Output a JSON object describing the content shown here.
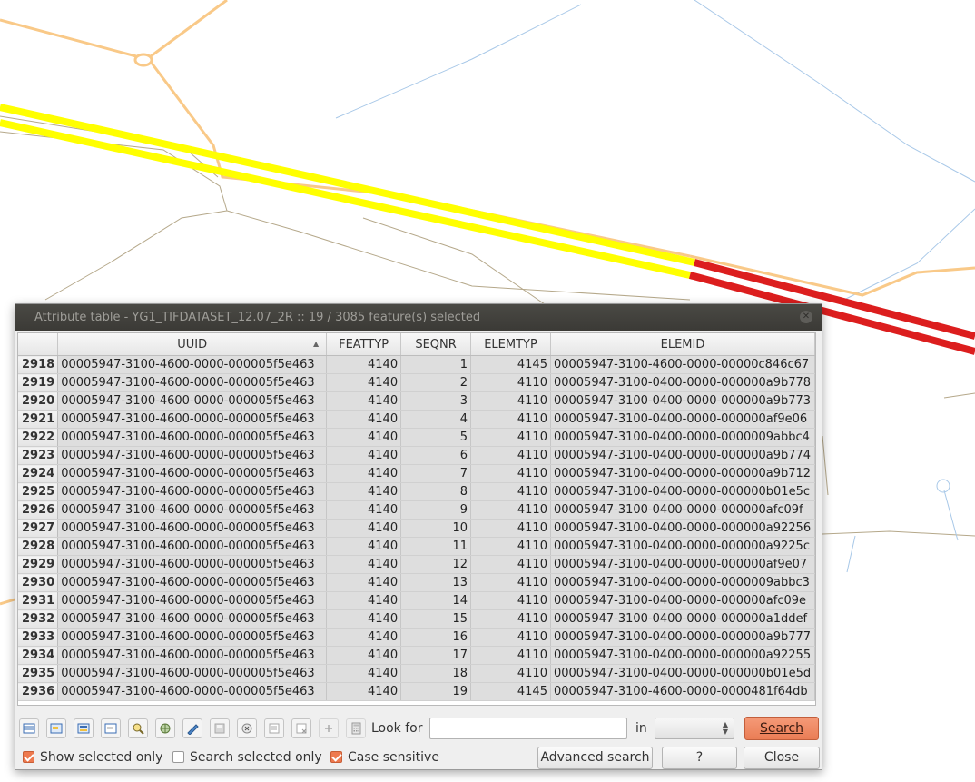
{
  "window": {
    "title": "Attribute table - YG1_TIFDATASET_12.07_2R :: 19 / 3085 feature(s) selected"
  },
  "table": {
    "columns": [
      "UUID",
      "FEATTYP",
      "SEQNR",
      "ELEMTYP",
      "ELEMID"
    ],
    "sorted_column": "UUID",
    "rows": [
      {
        "id": "2918",
        "uuid": "00005947-3100-4600-0000-000005f5e463",
        "feattyp": "4140",
        "seqnr": "1",
        "elemtyp": "4145",
        "elemid": "00005947-3100-4600-0000-00000c846c67"
      },
      {
        "id": "2919",
        "uuid": "00005947-3100-4600-0000-000005f5e463",
        "feattyp": "4140",
        "seqnr": "2",
        "elemtyp": "4110",
        "elemid": "00005947-3100-0400-0000-000000a9b778"
      },
      {
        "id": "2920",
        "uuid": "00005947-3100-4600-0000-000005f5e463",
        "feattyp": "4140",
        "seqnr": "3",
        "elemtyp": "4110",
        "elemid": "00005947-3100-0400-0000-000000a9b773"
      },
      {
        "id": "2921",
        "uuid": "00005947-3100-4600-0000-000005f5e463",
        "feattyp": "4140",
        "seqnr": "4",
        "elemtyp": "4110",
        "elemid": "00005947-3100-0400-0000-000000af9e06"
      },
      {
        "id": "2922",
        "uuid": "00005947-3100-4600-0000-000005f5e463",
        "feattyp": "4140",
        "seqnr": "5",
        "elemtyp": "4110",
        "elemid": "00005947-3100-0400-0000-0000009abbc4"
      },
      {
        "id": "2923",
        "uuid": "00005947-3100-4600-0000-000005f5e463",
        "feattyp": "4140",
        "seqnr": "6",
        "elemtyp": "4110",
        "elemid": "00005947-3100-0400-0000-000000a9b774"
      },
      {
        "id": "2924",
        "uuid": "00005947-3100-4600-0000-000005f5e463",
        "feattyp": "4140",
        "seqnr": "7",
        "elemtyp": "4110",
        "elemid": "00005947-3100-0400-0000-000000a9b712"
      },
      {
        "id": "2925",
        "uuid": "00005947-3100-4600-0000-000005f5e463",
        "feattyp": "4140",
        "seqnr": "8",
        "elemtyp": "4110",
        "elemid": "00005947-3100-0400-0000-000000b01e5c"
      },
      {
        "id": "2926",
        "uuid": "00005947-3100-4600-0000-000005f5e463",
        "feattyp": "4140",
        "seqnr": "9",
        "elemtyp": "4110",
        "elemid": "00005947-3100-0400-0000-000000afc09f"
      },
      {
        "id": "2927",
        "uuid": "00005947-3100-4600-0000-000005f5e463",
        "feattyp": "4140",
        "seqnr": "10",
        "elemtyp": "4110",
        "elemid": "00005947-3100-0400-0000-000000a92256"
      },
      {
        "id": "2928",
        "uuid": "00005947-3100-4600-0000-000005f5e463",
        "feattyp": "4140",
        "seqnr": "11",
        "elemtyp": "4110",
        "elemid": "00005947-3100-0400-0000-000000a9225c"
      },
      {
        "id": "2929",
        "uuid": "00005947-3100-4600-0000-000005f5e463",
        "feattyp": "4140",
        "seqnr": "12",
        "elemtyp": "4110",
        "elemid": "00005947-3100-0400-0000-000000af9e07"
      },
      {
        "id": "2930",
        "uuid": "00005947-3100-4600-0000-000005f5e463",
        "feattyp": "4140",
        "seqnr": "13",
        "elemtyp": "4110",
        "elemid": "00005947-3100-0400-0000-0000009abbc3"
      },
      {
        "id": "2931",
        "uuid": "00005947-3100-4600-0000-000005f5e463",
        "feattyp": "4140",
        "seqnr": "14",
        "elemtyp": "4110",
        "elemid": "00005947-3100-0400-0000-000000afc09e"
      },
      {
        "id": "2932",
        "uuid": "00005947-3100-4600-0000-000005f5e463",
        "feattyp": "4140",
        "seqnr": "15",
        "elemtyp": "4110",
        "elemid": "00005947-3100-0400-0000-000000a1ddef"
      },
      {
        "id": "2933",
        "uuid": "00005947-3100-4600-0000-000005f5e463",
        "feattyp": "4140",
        "seqnr": "16",
        "elemtyp": "4110",
        "elemid": "00005947-3100-0400-0000-000000a9b777"
      },
      {
        "id": "2934",
        "uuid": "00005947-3100-4600-0000-000005f5e463",
        "feattyp": "4140",
        "seqnr": "17",
        "elemtyp": "4110",
        "elemid": "00005947-3100-0400-0000-000000a92255"
      },
      {
        "id": "2935",
        "uuid": "00005947-3100-4600-0000-000005f5e463",
        "feattyp": "4140",
        "seqnr": "18",
        "elemtyp": "4110",
        "elemid": "00005947-3100-0400-0000-000000b01e5d"
      },
      {
        "id": "2936",
        "uuid": "00005947-3100-4600-0000-000005f5e463",
        "feattyp": "4140",
        "seqnr": "19",
        "elemtyp": "4145",
        "elemid": "00005947-3100-4600-0000-0000481f64db"
      }
    ]
  },
  "toolbar": {
    "icons": [
      "table-view-icon",
      "select-all-icon",
      "invert-selection-icon",
      "deselect-icon",
      "zoom-to-selection-icon",
      "pan-to-selection-icon",
      "toggle-edit-icon",
      "save-edits-icon",
      "delete-feature-icon",
      "new-column-icon",
      "delete-column-icon",
      "add-icon",
      "field-calculator-icon"
    ],
    "look_for_label": "Look for",
    "search_value": "",
    "in_label": "in",
    "field_selected": "",
    "search_button": "Search"
  },
  "bottom": {
    "show_selected_only": {
      "label": "Show selected only",
      "checked": true
    },
    "search_selected_only": {
      "label": "Search selected only",
      "checked": false
    },
    "case_sensitive": {
      "label": "Case sensitive",
      "checked": true
    },
    "advanced_search_button": "Advanced search",
    "help_button": "?",
    "close_button": "Close"
  },
  "colors": {
    "selected_road": "#ffff00",
    "road_red": "#dc1e1e",
    "road_orange": "#f9c988",
    "water_line": "#a8c8e8",
    "search_accent": "#ee7a4f"
  }
}
